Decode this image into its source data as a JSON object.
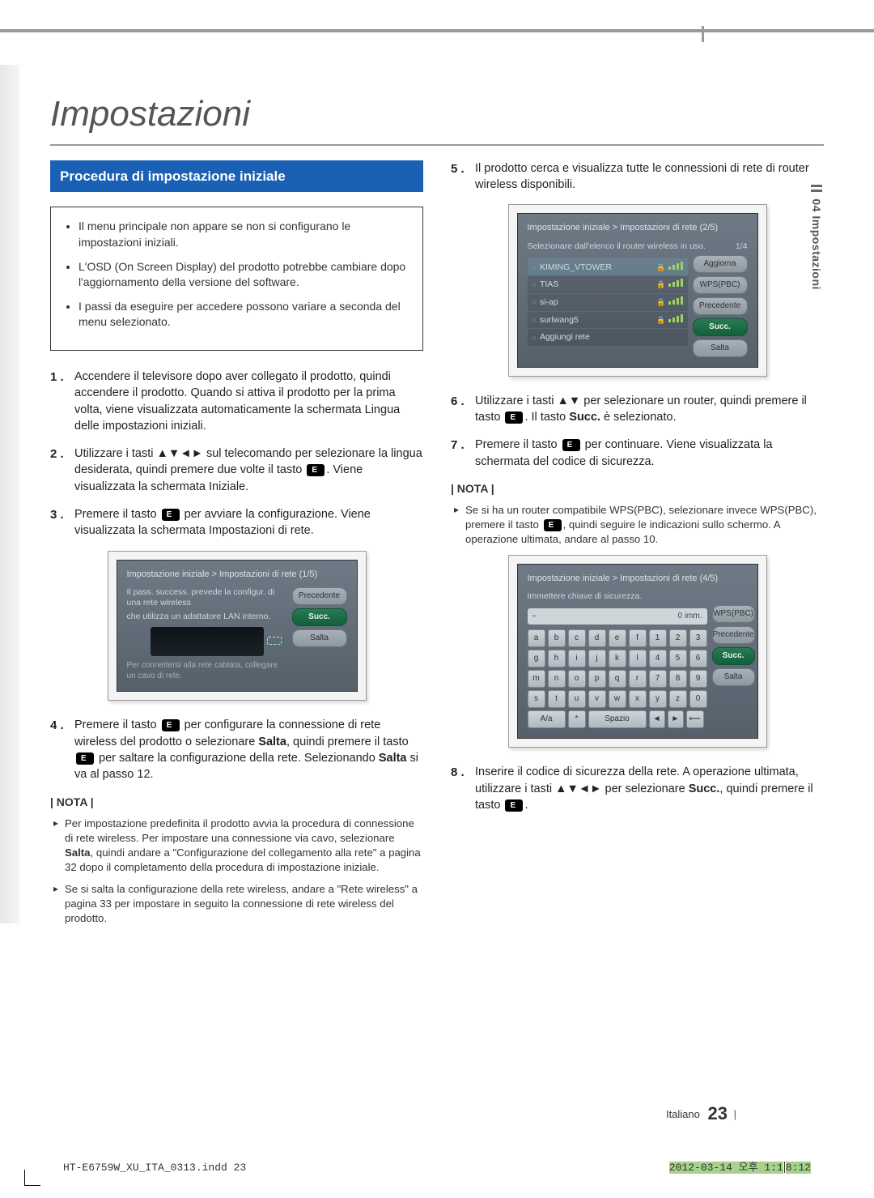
{
  "page": {
    "title": "Impostazioni",
    "sideTab": "04  Impostazioni",
    "lang_foot": "Italiano",
    "pageNumber": "23",
    "inddFile": "HT-E6759W_XU_ITA_0313.indd   23",
    "timestamp_a": "2012-03-14   오후 1:1",
    "timestamp_b": "8:12"
  },
  "left": {
    "bandTitle": "Procedura di impostazione iniziale",
    "infoBullets": [
      "Il menu principale non appare se non si configurano le impostazioni iniziali.",
      "L'OSD (On Screen Display) del prodotto potrebbe cambiare dopo l'aggiornamento della versione del software.",
      "I passi da eseguire per accedere possono variare a seconda del menu selezionato."
    ],
    "steps": [
      {
        "n": "1 .",
        "t": "Accendere il televisore dopo aver collegato il prodotto, quindi accendere il prodotto. Quando si attiva il prodotto per la prima volta, viene visualizzata automaticamente la schermata Lingua delle impostazioni iniziali."
      },
      {
        "n": "2 .",
        "t": "Utilizzare i tasti ▲▼◄► sul telecomando per selezionare la lingua desiderata, quindi premere due volte il tasto [E]. Viene visualizzata la schermata Iniziale."
      },
      {
        "n": "3 .",
        "t": "Premere il tasto [E] per avviare la configurazione. Viene visualizzata la schermata Impostazioni di rete."
      }
    ],
    "step4": {
      "n": "4 .",
      "t": "Premere il tasto [E] per configurare la connessione di rete wireless del prodotto o selezionare Salta, quindi premere il tasto [E] per saltare la configurazione della rete. Selezionando Salta si va al passo 12."
    },
    "notaLabel": "| NOTA |",
    "notas": [
      "Per impostazione predefinita il prodotto avvia la procedura di connessione di rete wireless. Per impostare una connessione via cavo, selezionare Salta, quindi andare a \"Configurazione del collegamento alla rete\" a pagina 32 dopo il completamento della procedura di impostazione iniziale.",
      "Se si salta la configurazione della rete wireless, andare a \"Rete wireless\" a pagina 33 per impostare in seguito la connessione di rete wireless del prodotto."
    ],
    "shot1": {
      "title": "Impostazione iniziale > Impostazioni di rete (1/5)",
      "desc1": "Il pass. success. prevede la configur. di una rete wireless",
      "desc2": "che utilizza un adattatore LAN interno.",
      "foot": "Per connettersi alla rete cablata, collegare un cavo di rete.",
      "right": {
        "prec": "Precedente",
        "succ": "Succ.",
        "salta": "Salta"
      }
    }
  },
  "right": {
    "step5": {
      "n": "5 .",
      "t": "Il prodotto cerca e visualizza tutte le connessioni di rete di router wireless disponibili."
    },
    "shot2": {
      "title": "Impostazione iniziale > Impostazioni di rete (2/5)",
      "desc": "Selezionare dall'elenco il router wireless in uso.",
      "pageInd": "1/4",
      "routers": [
        {
          "name": "KIMING_VTOWER",
          "lock": true,
          "hl": true
        },
        {
          "name": "TIAS",
          "lock": true,
          "hl": false
        },
        {
          "name": "si-ap",
          "lock": true,
          "hl": false
        },
        {
          "name": "surlwang5",
          "lock": true,
          "hl": false
        },
        {
          "name": "Aggiungi rete",
          "lock": false,
          "hl": false
        }
      ],
      "side": {
        "agg": "Aggiorna",
        "wps": "WPS(PBC)",
        "prec": "Precedente",
        "succ": "Succ.",
        "salta": "Salta"
      }
    },
    "step6": {
      "n": "6 .",
      "t": "Utilizzare i tasti ▲▼ per selezionare un router, quindi premere il tasto [E]. Il tasto Succ. è selezionato."
    },
    "step7": {
      "n": "7 .",
      "t": "Premere il tasto [E] per continuare. Viene visualizzata la schermata del codice di sicurezza."
    },
    "notaLabel": "| NOTA |",
    "notas": [
      "Se si ha un router compatibile WPS(PBC), selezionare invece WPS(PBC), premere il tasto [E], quindi seguire le indicazioni sullo schermo. A operazione ultimata, andare al passo 10."
    ],
    "shot3": {
      "title": "Impostazione iniziale > Impostazioni di rete (4/5)",
      "desc": "Immettere chiave di sicurezza.",
      "inputRight": "0 imm.",
      "rows": [
        [
          "a",
          "b",
          "c",
          "d",
          "e",
          "f",
          "1",
          "2",
          "3"
        ],
        [
          "g",
          "h",
          "i",
          "j",
          "k",
          "l",
          "4",
          "5",
          "6"
        ],
        [
          "m",
          "n",
          "o",
          "p",
          "q",
          "r",
          "7",
          "8",
          "9"
        ],
        [
          "s",
          "t",
          "u",
          "v",
          "w",
          "x",
          "y",
          "z",
          "0"
        ]
      ],
      "bottom": {
        "shift": "A/a",
        "sym": "*",
        "space": "Spazio",
        "navL": "◄",
        "navR": "►",
        "del": "⟵"
      },
      "side": {
        "wps": "WPS(PBC)",
        "prec": "Precedente",
        "succ": "Succ.",
        "salta": "Salta"
      }
    },
    "step8": {
      "n": "8 .",
      "t": "Inserire il codice di sicurezza della rete. A operazione ultimata, utilizzare i tasti ▲▼◄► per selezionare Succ., quindi premere il tasto [E]."
    }
  }
}
